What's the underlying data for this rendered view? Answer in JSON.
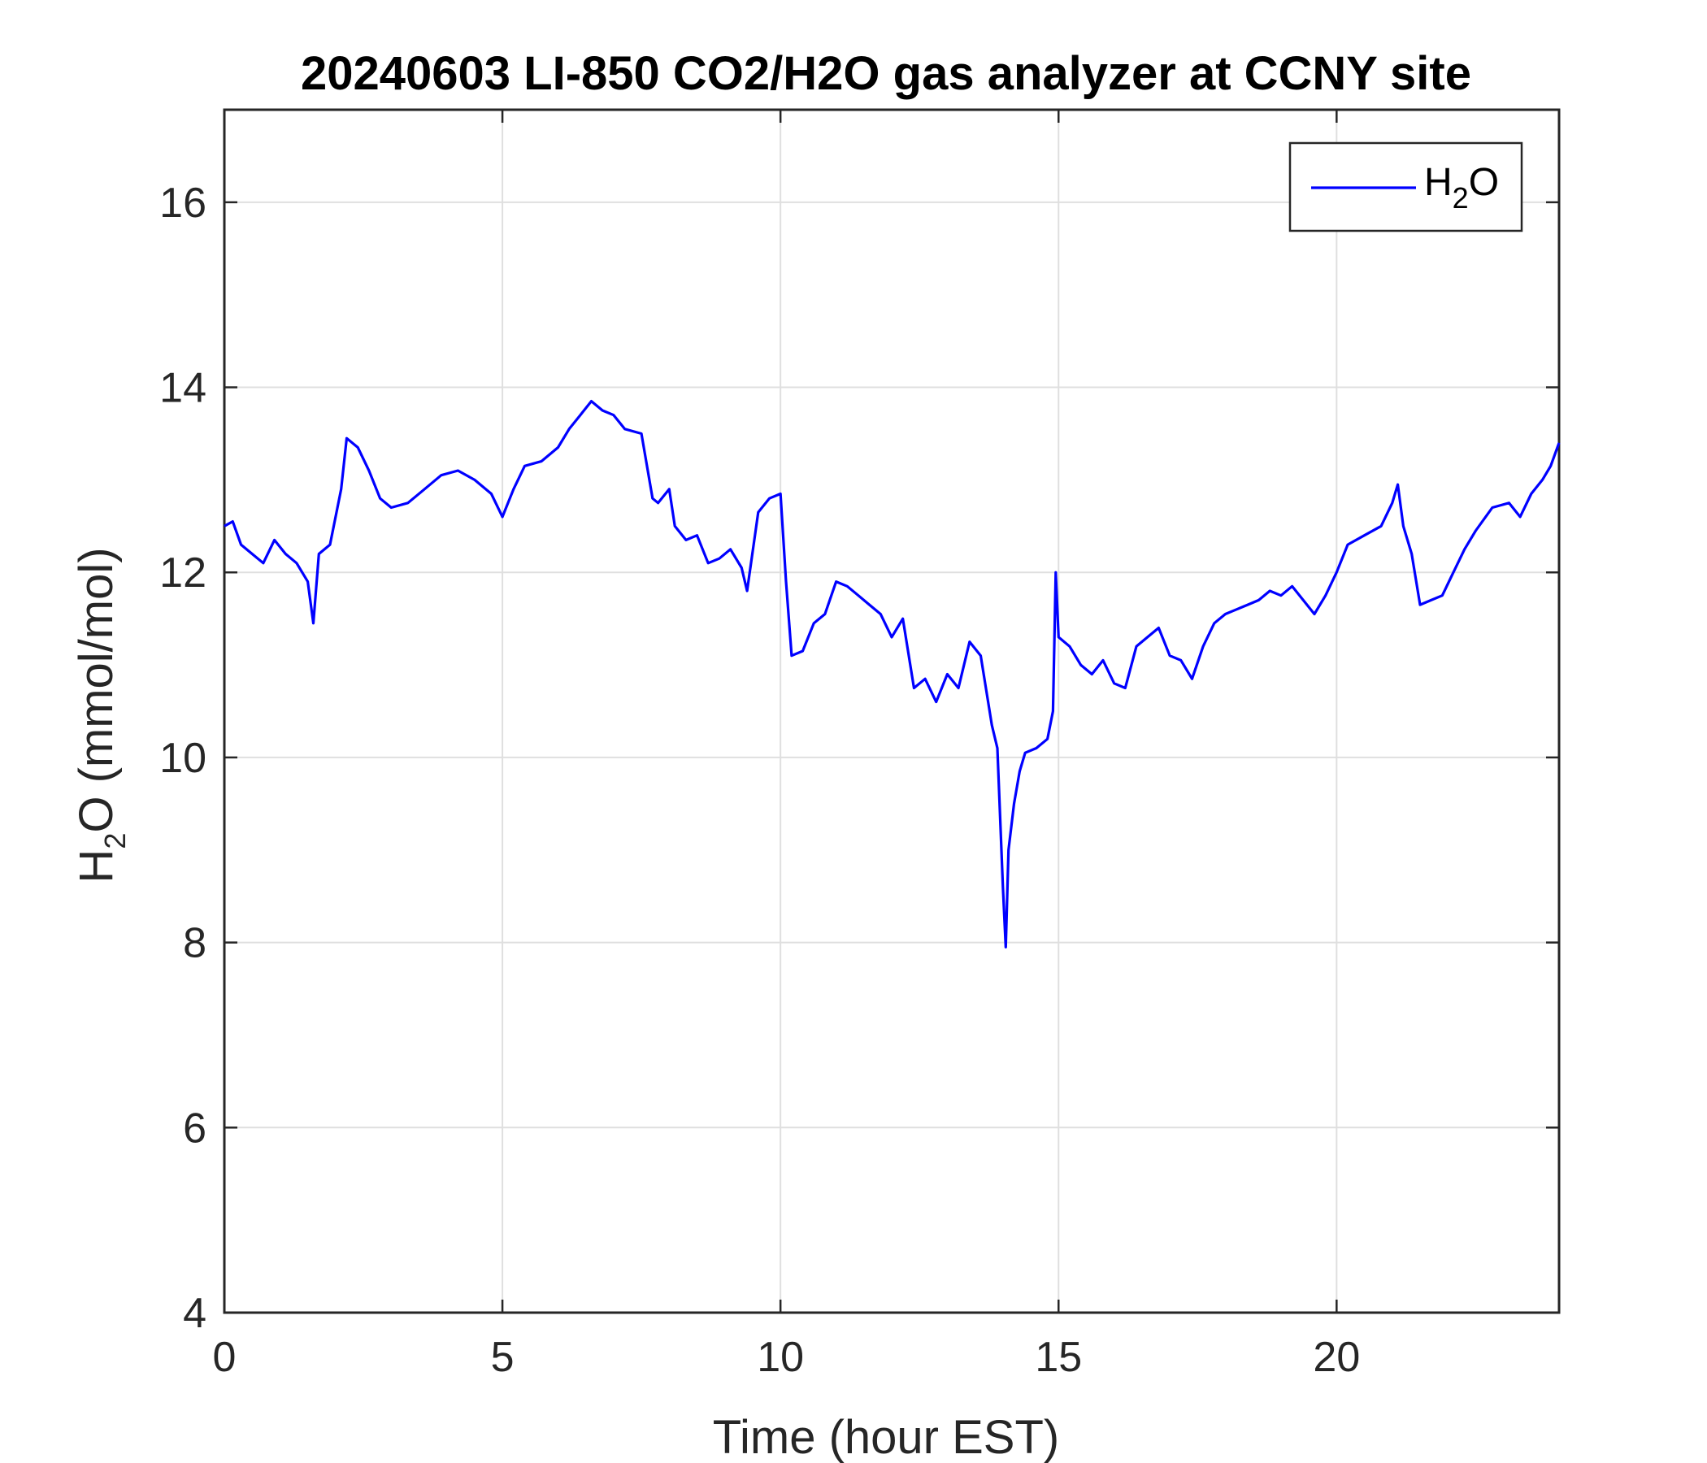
{
  "chart_data": {
    "type": "line",
    "title": "20240603 LI-850 CO2/H2O gas analyzer at CCNY site",
    "xlabel": "Time (hour EST)",
    "ylabel": {
      "pre": "H",
      "sub": "2",
      "post": "O (mmol/mol)"
    },
    "xlim": [
      0,
      24
    ],
    "ylim": [
      4,
      17
    ],
    "xticks": [
      0,
      5,
      10,
      15,
      20
    ],
    "yticks": [
      4,
      6,
      8,
      10,
      12,
      14,
      16
    ],
    "grid": true,
    "legend_position": "top-right",
    "colors": {
      "series": "#0000ff",
      "axis": "#262626",
      "grid": "#dfdfdf"
    },
    "series": [
      {
        "name": {
          "pre": "H",
          "sub": "2",
          "post": "O"
        },
        "x": [
          0,
          0.15,
          0.3,
          0.5,
          0.7,
          0.9,
          1.1,
          1.3,
          1.5,
          1.6,
          1.7,
          1.9,
          2.1,
          2.2,
          2.4,
          2.6,
          2.8,
          3.0,
          3.3,
          3.6,
          3.9,
          4.2,
          4.5,
          4.8,
          5.0,
          5.2,
          5.4,
          5.7,
          6.0,
          6.2,
          6.4,
          6.6,
          6.8,
          7.0,
          7.2,
          7.5,
          7.7,
          7.8,
          8.0,
          8.1,
          8.3,
          8.5,
          8.7,
          8.9,
          9.1,
          9.3,
          9.4,
          9.6,
          9.8,
          10.0,
          10.1,
          10.2,
          10.4,
          10.6,
          10.8,
          11.0,
          11.2,
          11.4,
          11.6,
          11.8,
          12.0,
          12.2,
          12.4,
          12.6,
          12.8,
          13.0,
          13.2,
          13.4,
          13.6,
          13.8,
          13.9,
          14.0,
          14.05,
          14.1,
          14.2,
          14.3,
          14.4,
          14.6,
          14.8,
          14.9,
          14.95,
          15.0,
          15.2,
          15.4,
          15.6,
          15.8,
          16.0,
          16.2,
          16.4,
          16.6,
          16.8,
          17.0,
          17.2,
          17.4,
          17.6,
          17.8,
          18.0,
          18.2,
          18.4,
          18.6,
          18.8,
          19.0,
          19.2,
          19.4,
          19.6,
          19.8,
          20.0,
          20.2,
          20.5,
          20.8,
          21.0,
          21.1,
          21.2,
          21.35,
          21.5,
          21.7,
          21.9,
          22.1,
          22.3,
          22.5,
          22.8,
          23.1,
          23.3,
          23.5,
          23.7,
          23.85,
          24.0
        ],
        "values": [
          12.5,
          12.55,
          12.3,
          12.2,
          12.1,
          12.35,
          12.2,
          12.1,
          11.9,
          11.45,
          12.2,
          12.3,
          12.9,
          13.45,
          13.35,
          13.1,
          12.8,
          12.7,
          12.75,
          12.9,
          13.05,
          13.1,
          13.0,
          12.85,
          12.6,
          12.9,
          13.15,
          13.2,
          13.35,
          13.55,
          13.7,
          13.85,
          13.75,
          13.7,
          13.55,
          13.5,
          12.8,
          12.75,
          12.9,
          12.5,
          12.35,
          12.4,
          12.1,
          12.15,
          12.25,
          12.05,
          11.8,
          12.65,
          12.8,
          12.85,
          11.9,
          11.1,
          11.15,
          11.45,
          11.55,
          11.9,
          11.85,
          11.75,
          11.65,
          11.55,
          11.3,
          11.5,
          10.75,
          10.85,
          10.6,
          10.9,
          10.75,
          11.25,
          11.1,
          10.35,
          10.1,
          8.6,
          7.95,
          9.0,
          9.5,
          9.85,
          10.05,
          10.1,
          10.2,
          10.5,
          12.0,
          11.3,
          11.2,
          11.0,
          10.9,
          11.05,
          10.8,
          10.75,
          11.2,
          11.3,
          11.4,
          11.1,
          11.05,
          10.85,
          11.2,
          11.45,
          11.55,
          11.6,
          11.65,
          11.7,
          11.8,
          11.75,
          11.85,
          11.7,
          11.55,
          11.75,
          12.0,
          12.3,
          12.4,
          12.5,
          12.75,
          12.95,
          12.5,
          12.2,
          11.65,
          11.7,
          11.75,
          12.0,
          12.25,
          12.45,
          12.7,
          12.75,
          12.6,
          12.85,
          13.0,
          13.15,
          13.4
        ]
      }
    ]
  }
}
